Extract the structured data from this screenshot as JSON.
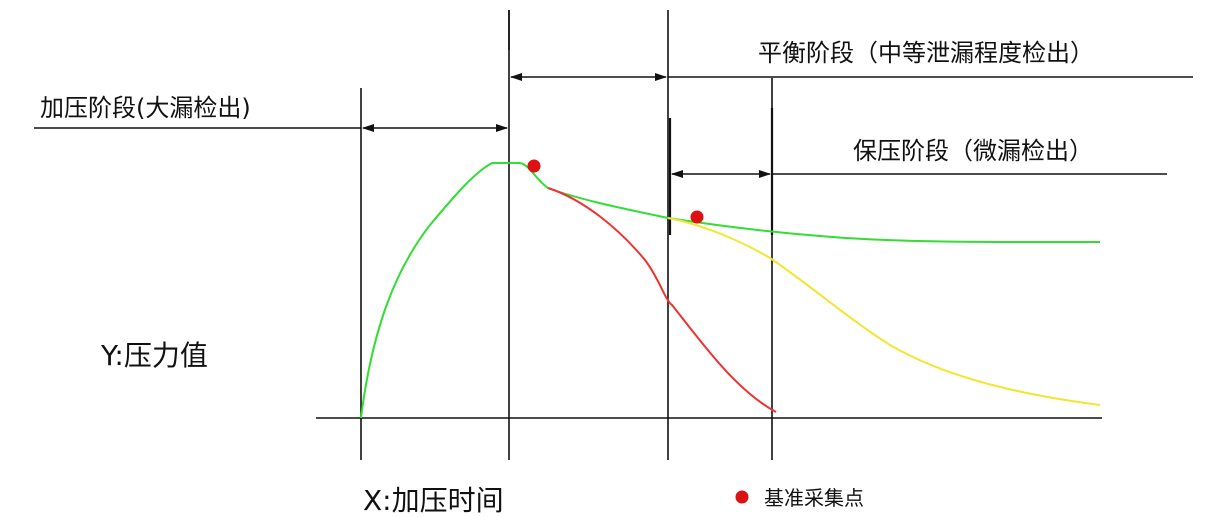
{
  "labels": {
    "pressurize_phase": "加压阶段(大漏检出)",
    "balance_phase": "平衡阶段（中等泄漏程度检出）",
    "hold_phase": "保压阶段（微漏检出）",
    "y_axis": "Y:压力值",
    "x_axis": "X:加压时间",
    "legend_reference_point": "基准采集点"
  },
  "colors": {
    "green_curve": "#33dd33",
    "red_curve": "#ee3333",
    "yellow_curve": "#f2e630",
    "reference_point": "#dd1111",
    "line": "#111111"
  },
  "icons": {
    "legend_marker": "red-dot-icon"
  }
}
